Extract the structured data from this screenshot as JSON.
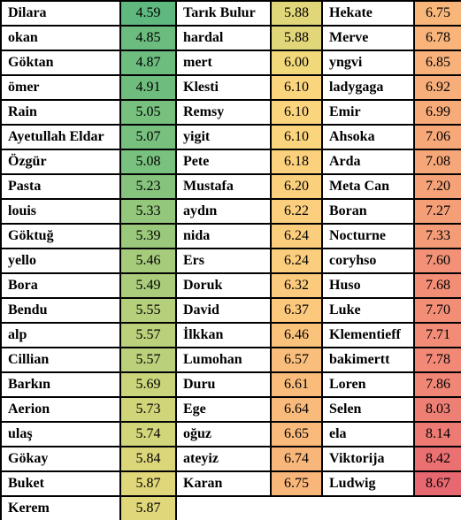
{
  "table": {
    "columns": [
      {
        "rows": [
          {
            "name": "Dilara",
            "score": "4.59",
            "color": "#5fb97e"
          },
          {
            "name": "okan",
            "score": "4.85",
            "color": "#6bbc7e"
          },
          {
            "name": "Göktan",
            "score": "4.87",
            "color": "#6cbd7e"
          },
          {
            "name": "ömer",
            "score": "4.91",
            "color": "#6ebd7e"
          },
          {
            "name": "Rain",
            "score": "5.05",
            "color": "#77c07e"
          },
          {
            "name": "Ayetullah Eldar",
            "score": "5.07",
            "color": "#78c07e"
          },
          {
            "name": "Özgür",
            "score": "5.08",
            "color": "#79c17e"
          },
          {
            "name": "Pasta",
            "score": "5.23",
            "color": "#86c47d"
          },
          {
            "name": "louis",
            "score": "5.33",
            "color": "#92c77c"
          },
          {
            "name": "Göktuğ",
            "score": "5.39",
            "color": "#9bc97b"
          },
          {
            "name": "yello",
            "score": "5.46",
            "color": "#a6cc7b"
          },
          {
            "name": "Bora",
            "score": "5.49",
            "color": "#abcd7b"
          },
          {
            "name": "Bendu",
            "score": "5.55",
            "color": "#b5cf7a"
          },
          {
            "name": "alp",
            "score": "5.57",
            "color": "#bad07a"
          },
          {
            "name": "Cillian",
            "score": "5.57",
            "color": "#bad07a"
          },
          {
            "name": "Barkın",
            "score": "5.69",
            "color": "#cad47a"
          },
          {
            "name": "Aerion",
            "score": "5.73",
            "color": "#d0d57a"
          },
          {
            "name": "ulaş",
            "score": "5.74",
            "color": "#d2d67a"
          },
          {
            "name": "Gökay",
            "score": "5.84",
            "color": "#dcd67a"
          },
          {
            "name": "Buket",
            "score": "5.87",
            "color": "#e0d67a"
          },
          {
            "name": "Kerem",
            "score": "5.87",
            "color": "#e0d67a"
          }
        ]
      },
      {
        "rows": [
          {
            "name": "Tarık Bulur",
            "score": "5.88",
            "color": "#e2d67a"
          },
          {
            "name": "hardal",
            "score": "5.88",
            "color": "#e2d67a"
          },
          {
            "name": "mert",
            "score": "6.00",
            "color": "#f1d97b"
          },
          {
            "name": "Klesti",
            "score": "6.10",
            "color": "#fbd57d"
          },
          {
            "name": "Remsy",
            "score": "6.10",
            "color": "#fbd57d"
          },
          {
            "name": "yigit",
            "score": "6.10",
            "color": "#fbd57d"
          },
          {
            "name": "Pete",
            "score": "6.18",
            "color": "#fbd17d"
          },
          {
            "name": "Mustafa",
            "score": "6.20",
            "color": "#fbd07d"
          },
          {
            "name": "aydın",
            "score": "6.22",
            "color": "#fbcf7d"
          },
          {
            "name": "nida",
            "score": "6.24",
            "color": "#fbce7d"
          },
          {
            "name": "Ers",
            "score": "6.24",
            "color": "#fbce7d"
          },
          {
            "name": "Doruk",
            "score": "6.32",
            "color": "#fbca7d"
          },
          {
            "name": "David",
            "score": "6.37",
            "color": "#fbc87c"
          },
          {
            "name": "İlkkan",
            "score": "6.46",
            "color": "#fac37c"
          },
          {
            "name": "Lumohan",
            "score": "6.57",
            "color": "#f9be7b"
          },
          {
            "name": "Duru",
            "score": "6.61",
            "color": "#f9bc7b"
          },
          {
            "name": "Ege",
            "score": "6.64",
            "color": "#f9bb7b"
          },
          {
            "name": "oğuz",
            "score": "6.65",
            "color": "#f9ba7b"
          },
          {
            "name": "ateyiz",
            "score": "6.74",
            "color": "#f8b67a"
          },
          {
            "name": "Karan",
            "score": "6.75",
            "color": "#f8b67a"
          }
        ]
      },
      {
        "rows": [
          {
            "name": "Hekate",
            "score": "6.75",
            "color": "#f8b67a"
          },
          {
            "name": "Merve",
            "score": "6.78",
            "color": "#f8b47a"
          },
          {
            "name": "yngvi",
            "score": "6.85",
            "color": "#f8b17a"
          },
          {
            "name": "ladygaga",
            "score": "6.92",
            "color": "#f7ae7a"
          },
          {
            "name": "Emir",
            "score": "6.99",
            "color": "#f7ab79"
          },
          {
            "name": "Ahsoka",
            "score": "7.06",
            "color": "#f6a879"
          },
          {
            "name": "Arda",
            "score": "7.08",
            "color": "#f6a779"
          },
          {
            "name": "Meta Can",
            "score": "7.20",
            "color": "#f5a278"
          },
          {
            "name": "Boran",
            "score": "7.27",
            "color": "#f59f78"
          },
          {
            "name": "Nocturne",
            "score": "7.33",
            "color": "#f49c78"
          },
          {
            "name": "coryhso",
            "score": "7.60",
            "color": "#f29177"
          },
          {
            "name": "Huso",
            "score": "7.68",
            "color": "#f28e76"
          },
          {
            "name": "Luke",
            "score": "7.70",
            "color": "#f28d76"
          },
          {
            "name": "Klementieff",
            "score": "7.71",
            "color": "#f28c76"
          },
          {
            "name": "bakimertt",
            "score": "7.78",
            "color": "#f18976"
          },
          {
            "name": "Loren",
            "score": "7.86",
            "color": "#f08675"
          },
          {
            "name": "Selen",
            "score": "8.03",
            "color": "#ee7f74"
          },
          {
            "name": "ela",
            "score": "8.14",
            "color": "#ed7b73"
          },
          {
            "name": "Viktorija",
            "score": "8.42",
            "color": "#eb7072"
          },
          {
            "name": "Ludwig",
            "score": "8.67",
            "color": "#e86871"
          }
        ]
      }
    ]
  }
}
